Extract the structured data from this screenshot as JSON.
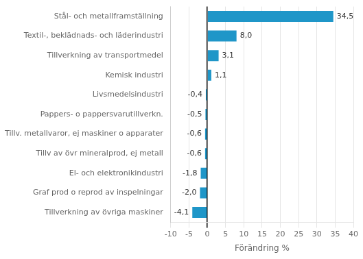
{
  "chart_data": {
    "type": "bar",
    "orientation": "horizontal",
    "categories": [
      "Tillverkning av övriga maskiner",
      "Graf prod o reprod av inspelningar",
      "El- och elektronikindustri",
      "Tillv av övr mineralprod, ej metall",
      "Tillv. metallvaror, ej maskiner o apparater",
      "Pappers- o pappersvarutillverkn.",
      "Livsmedelsindustri",
      "Kemisk industri",
      "Tillverkning av transportmedel",
      "Textil-, beklädnads- och läderindustri",
      "Stål- och metallframställning"
    ],
    "values": [
      -4.1,
      -2.0,
      -1.8,
      -0.6,
      -0.6,
      -0.5,
      -0.4,
      1.1,
      3.1,
      8.0,
      34.5
    ],
    "value_labels": [
      "-4,1",
      "-2,0",
      "-1,8",
      "-0,6",
      "-0,6",
      "-0,5",
      "-0,4",
      "1,1",
      "3,1",
      "8,0",
      "34,5"
    ],
    "data_labels": true,
    "color": "#1f96c8",
    "xlabel": "Förändring %",
    "xlim": [
      -10,
      40
    ],
    "xticks": [
      -10,
      -5,
      0,
      5,
      10,
      15,
      20,
      25,
      30,
      35,
      40
    ],
    "grid": true
  }
}
